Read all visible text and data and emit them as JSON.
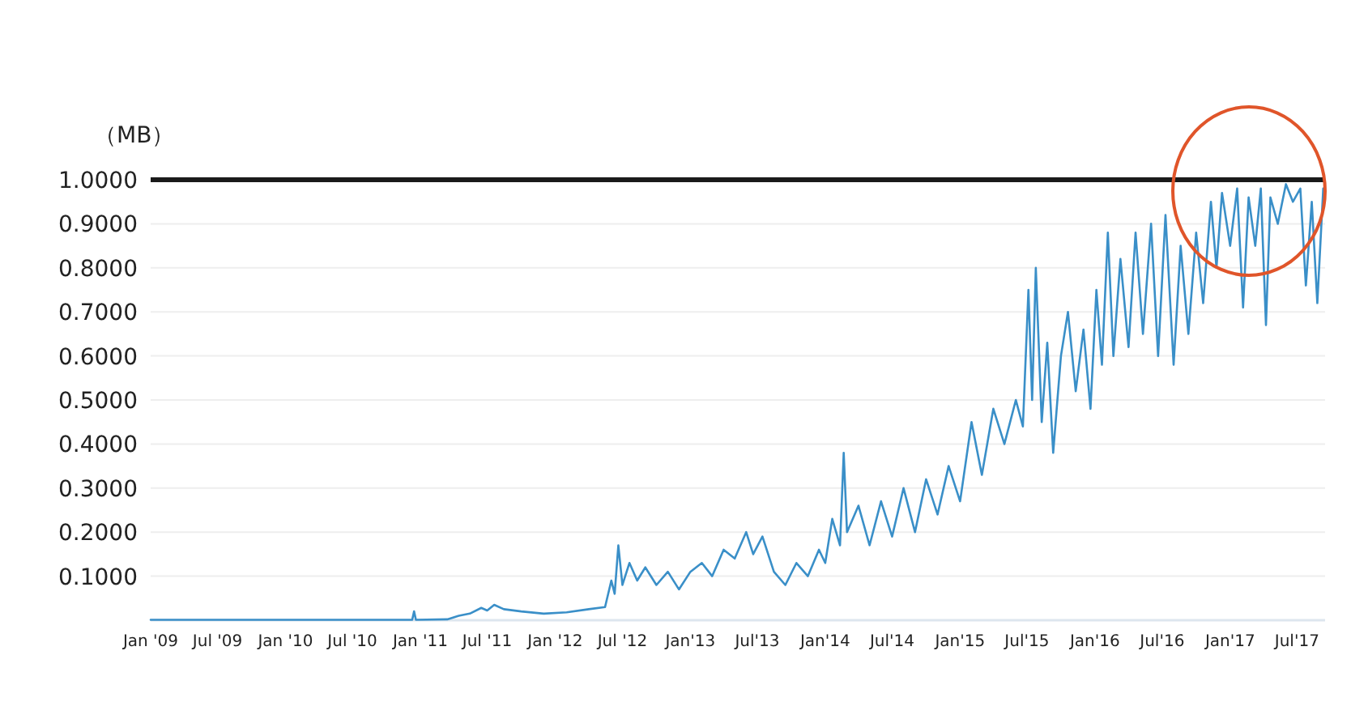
{
  "chart_data": {
    "type": "line",
    "ylabel": "（MB）",
    "grid": "y",
    "marker": "none",
    "line_style": "solid",
    "xlim": [
      "2009-01-01",
      "2017-09-15"
    ],
    "ylim": [
      0,
      1.0
    ],
    "yticks": [
      {
        "value": 0.1,
        "label": "0.1000"
      },
      {
        "value": 0.2,
        "label": "0.2000"
      },
      {
        "value": 0.3,
        "label": "0.3000"
      },
      {
        "value": 0.4,
        "label": "0.4000"
      },
      {
        "value": 0.5,
        "label": "0.5000"
      },
      {
        "value": 0.6,
        "label": "0.6000"
      },
      {
        "value": 0.7,
        "label": "0.7000"
      },
      {
        "value": 0.8,
        "label": "0.8000"
      },
      {
        "value": 0.9,
        "label": "0.9000"
      },
      {
        "value": 1.0,
        "label": "1.0000"
      }
    ],
    "xticks": [
      {
        "value": "2009-01",
        "label": "Jan '09"
      },
      {
        "value": "2009-07",
        "label": "Jul '09"
      },
      {
        "value": "2010-01",
        "label": "Jan '10"
      },
      {
        "value": "2010-07",
        "label": "Jul '10"
      },
      {
        "value": "2011-01",
        "label": "Jan '11"
      },
      {
        "value": "2011-07",
        "label": "Jul '11"
      },
      {
        "value": "2012-01",
        "label": "Jan '12"
      },
      {
        "value": "2012-07",
        "label": "Jul '12"
      },
      {
        "value": "2013-01",
        "label": "Jan'13"
      },
      {
        "value": "2013-07",
        "label": "Jul'13"
      },
      {
        "value": "2014-01",
        "label": "Jan'14"
      },
      {
        "value": "2014-07",
        "label": "Jul'14"
      },
      {
        "value": "2015-01",
        "label": "Jan'15"
      },
      {
        "value": "2015-07",
        "label": "Jul'15"
      },
      {
        "value": "2016-01",
        "label": "Jan'16"
      },
      {
        "value": "2016-07",
        "label": "Jul'16"
      },
      {
        "value": "2017-01",
        "label": "Jan'17"
      },
      {
        "value": "2017-07",
        "label": "Jul'17"
      }
    ],
    "ref_lines": [
      {
        "axis": "y",
        "value": 1.0,
        "color": "#1a1a1a",
        "line_style": "solid"
      }
    ],
    "series": [
      {
        "color": "#3a8fc8",
        "x": [
          "2009-01-01",
          "2009-07-01",
          "2010-01-01",
          "2010-07-01",
          "2010-12-10",
          "2010-12-15",
          "2010-12-20",
          "2011-03-15",
          "2011-04-15",
          "2011-05-15",
          "2011-06-15",
          "2011-07-01",
          "2011-07-20",
          "2011-08-15",
          "2011-10-01",
          "2011-12-01",
          "2012-02-01",
          "2012-04-01",
          "2012-05-15",
          "2012-06-01",
          "2012-06-10",
          "2012-06-20",
          "2012-07-01",
          "2012-07-20",
          "2012-08-10",
          "2012-09-01",
          "2012-10-01",
          "2012-11-01",
          "2012-12-01",
          "2013-01-01",
          "2013-02-01",
          "2013-03-01",
          "2013-04-01",
          "2013-05-01",
          "2013-06-01",
          "2013-06-20",
          "2013-07-15",
          "2013-08-15",
          "2013-09-15",
          "2013-10-15",
          "2013-11-15",
          "2013-12-15",
          "2014-01-01",
          "2014-01-20",
          "2014-02-10",
          "2014-02-20",
          "2014-03-01",
          "2014-04-01",
          "2014-05-01",
          "2014-06-01",
          "2014-07-01",
          "2014-08-01",
          "2014-09-01",
          "2014-10-01",
          "2014-11-01",
          "2014-12-01",
          "2015-01-01",
          "2015-02-01",
          "2015-03-01",
          "2015-04-01",
          "2015-05-01",
          "2015-06-01",
          "2015-06-20",
          "2015-07-05",
          "2015-07-15",
          "2015-07-25",
          "2015-08-10",
          "2015-08-25",
          "2015-09-10",
          "2015-10-01",
          "2015-10-20",
          "2015-11-10",
          "2015-12-01",
          "2015-12-20",
          "2016-01-05",
          "2016-01-20",
          "2016-02-05",
          "2016-02-20",
          "2016-03-10",
          "2016-04-01",
          "2016-04-20",
          "2016-05-10",
          "2016-06-01",
          "2016-06-20",
          "2016-07-10",
          "2016-08-01",
          "2016-08-20",
          "2016-09-10",
          "2016-10-01",
          "2016-10-20",
          "2016-11-10",
          "2016-11-25",
          "2016-12-10",
          "2017-01-01",
          "2017-01-20",
          "2017-02-05",
          "2017-02-20",
          "2017-03-10",
          "2017-03-25",
          "2017-04-08",
          "2017-04-20",
          "2017-05-10",
          "2017-06-01",
          "2017-06-20",
          "2017-07-10",
          "2017-07-25",
          "2017-08-10",
          "2017-08-25",
          "2017-09-10"
        ],
        "values": [
          0.001,
          0.001,
          0.001,
          0.001,
          0.001,
          0.02,
          0.001,
          0.002,
          0.01,
          0.015,
          0.028,
          0.022,
          0.035,
          0.025,
          0.02,
          0.015,
          0.018,
          0.025,
          0.03,
          0.09,
          0.06,
          0.17,
          0.08,
          0.13,
          0.09,
          0.12,
          0.08,
          0.11,
          0.07,
          0.11,
          0.13,
          0.1,
          0.16,
          0.14,
          0.2,
          0.15,
          0.19,
          0.11,
          0.08,
          0.13,
          0.1,
          0.16,
          0.13,
          0.23,
          0.17,
          0.38,
          0.2,
          0.26,
          0.17,
          0.27,
          0.19,
          0.3,
          0.2,
          0.32,
          0.24,
          0.35,
          0.27,
          0.45,
          0.33,
          0.48,
          0.4,
          0.5,
          0.44,
          0.75,
          0.5,
          0.8,
          0.45,
          0.63,
          0.38,
          0.6,
          0.7,
          0.52,
          0.66,
          0.48,
          0.75,
          0.58,
          0.88,
          0.6,
          0.82,
          0.62,
          0.88,
          0.65,
          0.9,
          0.6,
          0.92,
          0.58,
          0.85,
          0.65,
          0.88,
          0.72,
          0.95,
          0.8,
          0.97,
          0.85,
          0.98,
          0.71,
          0.96,
          0.85,
          0.98,
          0.67,
          0.96,
          0.9,
          0.99,
          0.95,
          0.98,
          0.76,
          0.95,
          0.72,
          0.98
        ]
      }
    ]
  }
}
